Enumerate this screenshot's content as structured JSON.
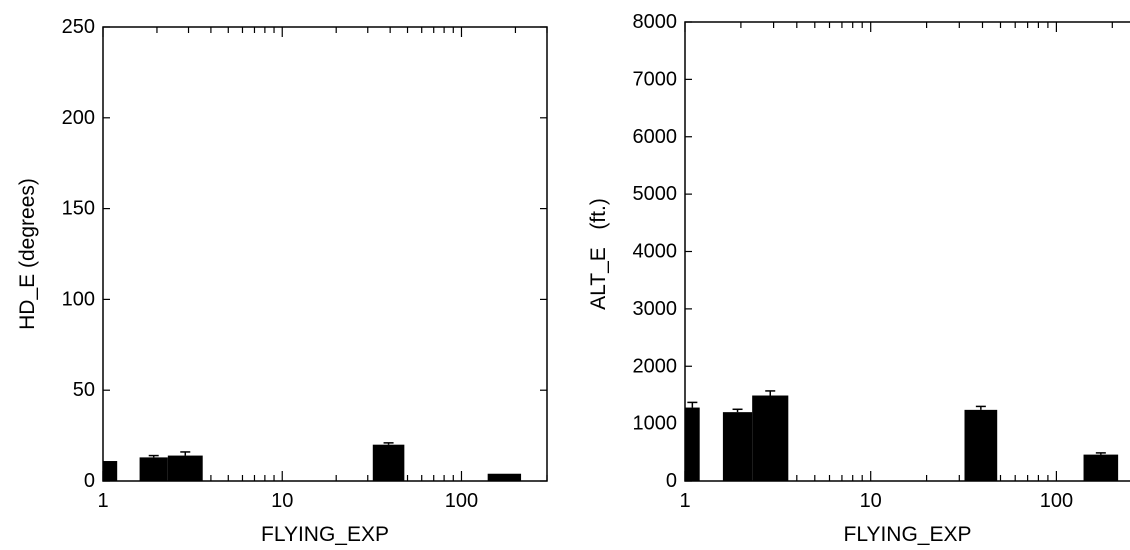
{
  "chart_data": [
    {
      "type": "bar",
      "title": "",
      "xlabel": "FLYING_EXP",
      "ylabel": "HD_E (degrees)",
      "xscale": "log",
      "xlim": [
        1,
        300
      ],
      "ylim": [
        0,
        250
      ],
      "xticks": [
        1,
        10,
        100
      ],
      "xtick_labels": [
        "1",
        "10",
        "100"
      ],
      "yticks": [
        0,
        50,
        100,
        150,
        200,
        250
      ],
      "ytick_labels": [
        "0",
        "50",
        "100",
        "150",
        "200",
        "250"
      ],
      "bars": [
        {
          "x0": 1.0,
          "x1": 1.2,
          "value": 11,
          "error": 0
        },
        {
          "x0": 1.6,
          "x1": 2.3,
          "value": 13,
          "error": 1
        },
        {
          "x0": 2.3,
          "x1": 3.6,
          "value": 14,
          "error": 2
        },
        {
          "x0": 32,
          "x1": 48,
          "value": 20,
          "error": 1
        },
        {
          "x0": 140,
          "x1": 215,
          "value": 4,
          "error": 0
        }
      ],
      "color": "#000000",
      "grid": false
    },
    {
      "type": "bar",
      "title": "",
      "xlabel": "FLYING_EXP",
      "ylabel": "ALT_E   (ft.)",
      "xscale": "log",
      "xlim": [
        1,
        300
      ],
      "ylim": [
        0,
        8000
      ],
      "xticks": [
        1,
        10,
        100
      ],
      "xtick_labels": [
        "1",
        "10",
        "100"
      ],
      "yticks": [
        0,
        1000,
        2000,
        3000,
        4000,
        5000,
        6000,
        7000,
        8000
      ],
      "ytick_labels": [
        "0",
        "1000",
        "2000",
        "3000",
        "4000",
        "5000",
        "6000",
        "7000",
        "8000"
      ],
      "bars": [
        {
          "x0": 1.0,
          "x1": 1.2,
          "value": 1280,
          "error": 90
        },
        {
          "x0": 1.6,
          "x1": 2.3,
          "value": 1200,
          "error": 50
        },
        {
          "x0": 2.3,
          "x1": 3.6,
          "value": 1490,
          "error": 80
        },
        {
          "x0": 32,
          "x1": 48,
          "value": 1240,
          "error": 60
        },
        {
          "x0": 140,
          "x1": 215,
          "value": 460,
          "error": 30
        }
      ],
      "color": "#000000",
      "grid": false
    }
  ]
}
